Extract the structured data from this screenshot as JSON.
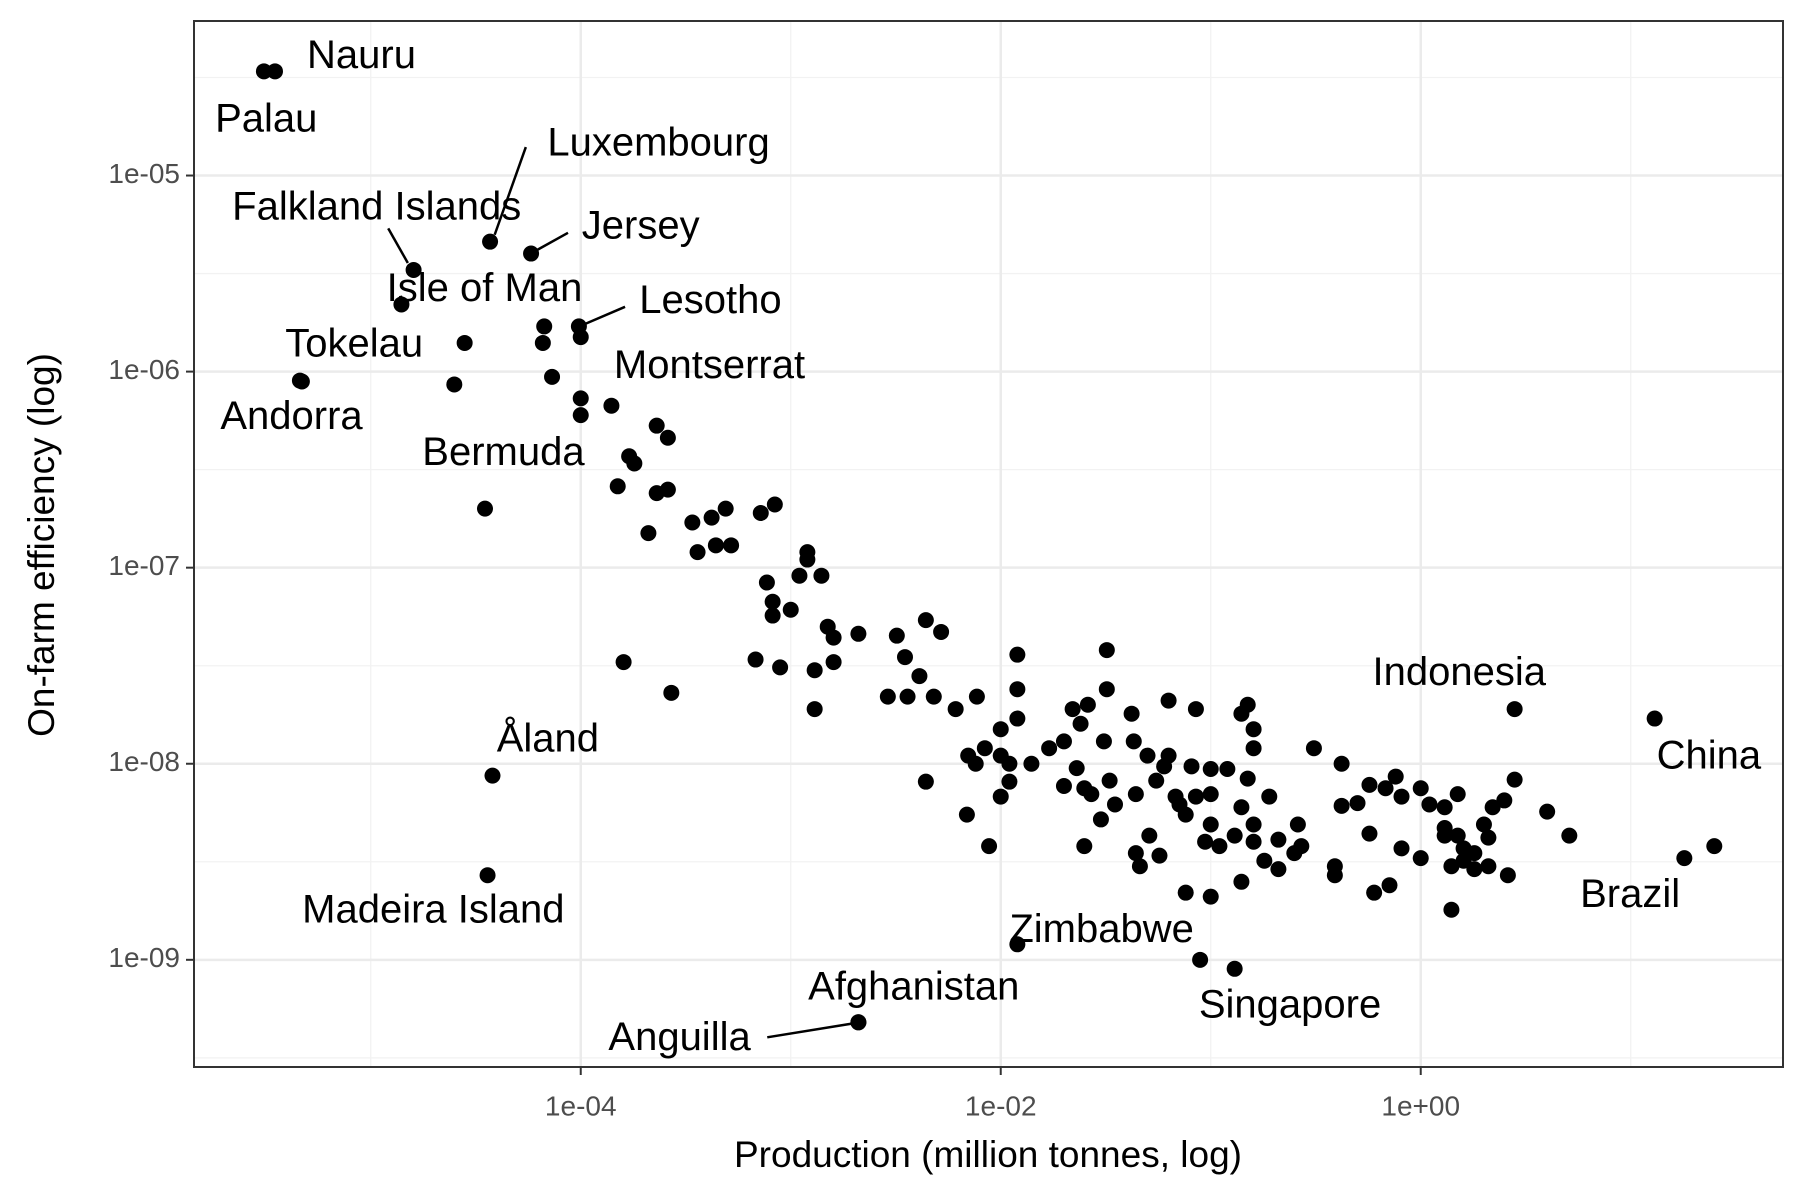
{
  "chart_data": {
    "type": "scatter",
    "x_label": "Production (million tonnes, log)",
    "y_label": "On-farm efficiency (log)",
    "log_x": true,
    "log_y": true,
    "grid": true,
    "xlim": [
      1.44e-06,
      53.1
    ],
    "ylim": [
      2.84e-10,
      6.14e-05
    ],
    "xticks": [
      {
        "value": 0.0001,
        "label": "1e-04"
      },
      {
        "value": 0.01,
        "label": "1e-02"
      },
      {
        "value": 1,
        "label": "1e+00"
      }
    ],
    "yticks": [
      {
        "value": 1e-05,
        "label": "1e-05"
      },
      {
        "value": 1e-06,
        "label": "1e-06"
      },
      {
        "value": 1e-07,
        "label": "1e-07"
      },
      {
        "value": 1e-08,
        "label": "1e-08"
      },
      {
        "value": 1e-09,
        "label": "1e-09"
      }
    ],
    "x_minor_grid": [
      1e-05,
      0.001,
      0.1,
      10
    ],
    "y_minor_grid": [
      3.162e-05,
      3.162e-06,
      3.162e-07,
      3.162e-08,
      3.162e-09,
      3.162e-10
    ],
    "series": [
      {
        "color": "#000000",
        "labels": [
          "Nauru",
          "Palau",
          "Falkland Islands",
          "Luxembourg",
          "Jersey",
          "Isle of Man",
          "Lesotho",
          "Tokelau",
          "Andorra",
          "Montserrat",
          "Bermuda",
          "Åland",
          "Madeira Island",
          "Afghanistan",
          "Anguilla",
          "Zimbabwe",
          "Singapore",
          "Indonesia",
          "China",
          "Brazil"
        ],
        "x": [
          3.5e-06,
          3.1e-06,
          1.6e-05,
          3.7e-05,
          5.8e-05,
          1.4e-05,
          9.8e-05,
          4.6e-06,
          4.7e-06,
          0.00014,
          3.5e-05,
          3.8e-05,
          3.6e-05,
          0.0021,
          0.0021,
          0.012,
          0.13,
          2.8,
          13,
          18
        ],
        "y": [
          3.4e-05,
          3.4e-05,
          3.3e-06,
          4.6e-06,
          4e-06,
          2.2e-06,
          1.7e-06,
          9e-07,
          8.9e-07,
          6.7e-07,
          2e-07,
          8.7e-09,
          2.7e-09,
          4.8e-10,
          4.8e-10,
          1.2e-09,
          9e-10,
          1.9e-08,
          1.7e-08,
          3.3e-09
        ]
      },
      {
        "color": "#000000",
        "x": [
          2.8e-05,
          2.5e-05,
          6.6e-05,
          6.7e-05,
          7.3e-05,
          0.0001,
          0.0001,
          0.0001,
          0.00023,
          0.00026,
          0.00017,
          0.00018,
          0.00015,
          0.00023,
          0.00026,
          0.00021,
          0.00034,
          0.00042,
          0.00049,
          0.00036,
          0.00044,
          0.00052,
          0.00072,
          0.00084,
          0.00077,
          0.00082,
          0.00082,
          0.001,
          0.0012,
          0.0012,
          0.0011,
          0.0014,
          0.0015,
          0.0016,
          0.0016,
          0.0013,
          0.0013,
          0.0021,
          0.0032,
          0.0035,
          0.0029,
          0.0036,
          0.0041,
          0.0044,
          0.0052,
          0.0048,
          0.0061,
          0.0077,
          0.0069,
          0.0044,
          0.0088,
          0.00016,
          0.00027,
          0.00068,
          0.00089,
          0.007,
          0.0076,
          0.0084,
          0.01,
          0.01,
          0.01,
          0.011,
          0.011,
          0.012,
          0.012,
          0.012,
          0.014,
          0.017,
          0.02,
          0.02,
          0.023,
          0.022,
          0.024,
          0.026,
          0.025,
          0.027,
          0.025,
          0.032,
          0.032,
          0.031,
          0.03,
          0.033,
          0.035,
          0.043,
          0.042,
          0.044,
          0.044,
          0.046,
          0.05,
          0.051,
          0.055,
          0.057,
          0.06,
          0.063,
          0.063,
          0.068,
          0.071,
          0.076,
          0.081,
          0.076,
          0.085,
          0.085,
          0.094,
          0.1,
          0.1,
          0.1,
          0.11,
          0.1,
          0.12,
          0.14,
          0.15,
          0.16,
          0.16,
          0.14,
          0.13,
          0.16,
          0.15,
          0.16,
          0.19,
          0.18,
          0.14,
          0.21,
          0.21,
          0.25,
          0.26,
          0.27,
          0.31,
          0.39,
          0.39,
          0.42,
          0.42,
          0.5,
          0.57,
          0.57,
          0.6,
          0.68,
          0.71,
          0.76,
          0.81,
          0.81,
          1,
          1,
          1.1,
          1.3,
          1.3,
          1.3,
          1.5,
          1.4,
          1.4,
          1.5,
          1.6,
          1.6,
          1.8,
          1.8,
          2.0,
          2.1,
          2.1,
          2.2,
          2.5,
          2.6,
          2.8,
          4.0,
          5.1,
          25,
          0.089
        ],
        "y": [
          1.4e-06,
          8.6e-07,
          1.4e-06,
          1.7e-06,
          9.4e-07,
          1.5e-06,
          7.3e-07,
          6e-07,
          5.3e-07,
          4.6e-07,
          3.7e-07,
          3.4e-07,
          2.6e-07,
          2.4e-07,
          2.5e-07,
          1.5e-07,
          1.7e-07,
          1.8e-07,
          2e-07,
          1.2e-07,
          1.3e-07,
          1.3e-07,
          1.9e-07,
          2.1e-07,
          8.4e-08,
          6.7e-08,
          5.7e-08,
          6.1e-08,
          1.2e-07,
          1.1e-07,
          9.1e-08,
          9.1e-08,
          5e-08,
          4.4e-08,
          3.3e-08,
          3e-08,
          1.9e-08,
          4.6e-08,
          4.5e-08,
          3.5e-08,
          2.2e-08,
          2.2e-08,
          2.8e-08,
          5.4e-08,
          4.7e-08,
          2.2e-08,
          1.9e-08,
          2.2e-08,
          5.5e-09,
          8.1e-09,
          3.8e-09,
          3.3e-08,
          2.3e-08,
          3.4e-08,
          3.1e-08,
          1.1e-08,
          1e-08,
          1.2e-08,
          1.1e-08,
          6.8e-09,
          1.5e-08,
          1e-08,
          8.1e-09,
          3.6e-08,
          2.4e-08,
          1.7e-08,
          1e-08,
          1.2e-08,
          1.3e-08,
          7.7e-09,
          9.5e-09,
          1.9e-08,
          1.6e-08,
          2e-08,
          7.5e-09,
          7e-09,
          3.8e-09,
          3.8e-08,
          2.4e-08,
          1.3e-08,
          5.2e-09,
          8.2e-09,
          6.2e-09,
          1.3e-08,
          1.8e-08,
          7e-09,
          3.5e-09,
          3e-09,
          1.1e-08,
          4.3e-09,
          8.2e-09,
          3.4e-09,
          9.7e-09,
          2.1e-08,
          1.1e-08,
          6.8e-09,
          6.2e-09,
          5.5e-09,
          9.7e-09,
          2.2e-09,
          1.9e-08,
          6.8e-09,
          4e-09,
          7e-09,
          4.9e-09,
          2.1e-09,
          3.8e-09,
          9.4e-09,
          9.4e-09,
          1.8e-08,
          2e-08,
          1.5e-08,
          1.2e-08,
          6e-09,
          4.3e-09,
          4.9e-09,
          8.4e-09,
          4e-09,
          6.8e-09,
          3.2e-09,
          2.5e-09,
          4.1e-09,
          2.9e-09,
          3.5e-09,
          4.9e-09,
          3.8e-09,
          1.2e-08,
          3e-09,
          2.7e-09,
          1e-08,
          6.1e-09,
          6.3e-09,
          7.8e-09,
          4.4e-09,
          2.2e-09,
          7.5e-09,
          2.4e-09,
          8.6e-09,
          6.8e-09,
          3.7e-09,
          7.5e-09,
          3.3e-09,
          6.2e-09,
          4.3e-09,
          6e-09,
          4.7e-09,
          7e-09,
          3e-09,
          1.8e-09,
          4.3e-09,
          3.2e-09,
          3.7e-09,
          3.5e-09,
          2.9e-09,
          4.9e-09,
          4.2e-09,
          3e-09,
          6e-09,
          6.5e-09,
          2.7e-09,
          8.3e-09,
          5.7e-09,
          4.3e-09,
          3.8e-09,
          1e-09
        ]
      }
    ]
  }
}
